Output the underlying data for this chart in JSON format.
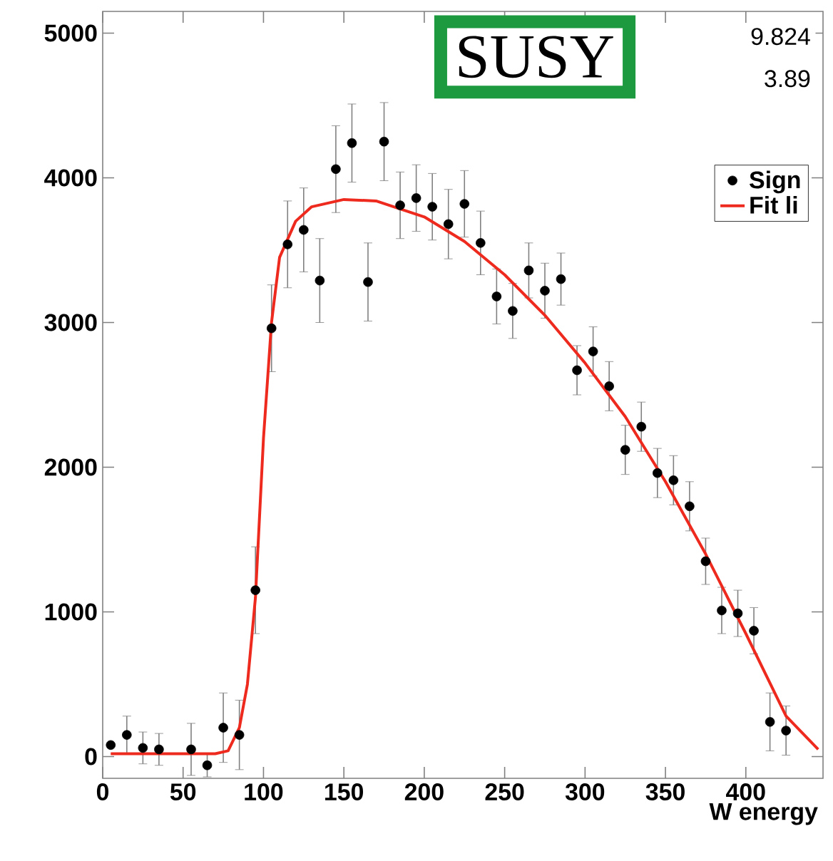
{
  "chart_data": {
    "type": "scatter",
    "xlabel": "W energy",
    "annotations": [
      "SUSY",
      "9.824",
      "3.89"
    ],
    "xlim": [
      0,
      448
    ],
    "xticks": [
      0,
      50,
      100,
      150,
      200,
      250,
      300,
      350,
      400
    ],
    "ylim": [
      -150,
      5150
    ],
    "yticks": [
      0,
      1000,
      2000,
      3000,
      4000,
      5000
    ],
    "legend": "top right",
    "marker": "circle",
    "series": [
      {
        "name": "Sign",
        "color": "#000000",
        "x": [
          5,
          15,
          25,
          35,
          55,
          65,
          75,
          85,
          95,
          105,
          115,
          125,
          135,
          145,
          155,
          165,
          175,
          185,
          195,
          205,
          215,
          225,
          235,
          245,
          255,
          265,
          275,
          285,
          295,
          305,
          315,
          325,
          335,
          345,
          355,
          365,
          375,
          385,
          395,
          405,
          415,
          425
        ],
        "values": [
          80,
          150,
          60,
          50,
          50,
          -60,
          200,
          150,
          1150,
          2960,
          3540,
          3640,
          3290,
          4060,
          4240,
          3280,
          4250,
          3810,
          3860,
          3800,
          3680,
          3820,
          3550,
          3180,
          3080,
          3360,
          3220,
          3300,
          2670,
          2800,
          2560,
          2120,
          2280,
          1960,
          1910,
          1730,
          1350,
          1010,
          990,
          870,
          240,
          180
        ],
        "errors": [
          null,
          130,
          110,
          110,
          180,
          80,
          240,
          240,
          300,
          300,
          300,
          290,
          290,
          300,
          270,
          270,
          270,
          230,
          230,
          230,
          240,
          230,
          220,
          190,
          190,
          190,
          190,
          180,
          170,
          170,
          170,
          170,
          170,
          170,
          170,
          170,
          160,
          160,
          160,
          160,
          200,
          170
        ]
      },
      {
        "name": "Fit li",
        "type": "line",
        "color": "#ee2a1e",
        "line_style": "solid",
        "marker": "none",
        "x": [
          5,
          70,
          78,
          85,
          90,
          95,
          100,
          105,
          110,
          120,
          130,
          150,
          170,
          200,
          225,
          250,
          275,
          300,
          325,
          350,
          375,
          400,
          425,
          445
        ],
        "values": [
          20,
          20,
          40,
          200,
          500,
          1100,
          2200,
          3000,
          3450,
          3700,
          3800,
          3850,
          3840,
          3730,
          3560,
          3330,
          3050,
          2720,
          2350,
          1900,
          1400,
          850,
          280,
          50
        ]
      }
    ]
  }
}
